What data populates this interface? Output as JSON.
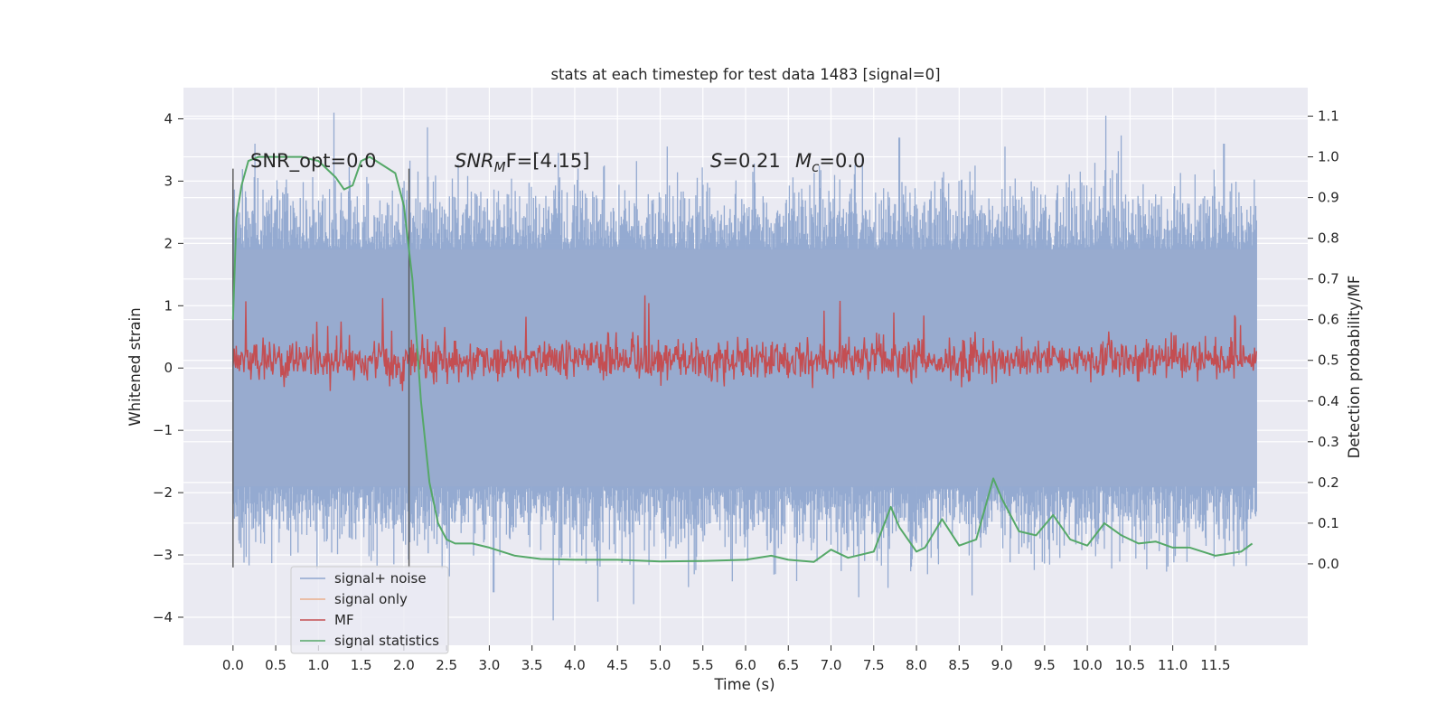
{
  "chart_data": {
    "type": "line",
    "title": "stats at each timestep for test data 1483 [signal=0]",
    "xlabel": "Time (s)",
    "ylabel": "Whitened strain",
    "y2label": "Detection probability/MF",
    "xlim": [
      -0.58,
      12.58
    ],
    "ylim": [
      -4.45,
      4.5
    ],
    "y2lim": [
      -0.2,
      1.17
    ],
    "grid": true,
    "x_ticks": [
      "0.0",
      "0.5",
      "1.0",
      "1.5",
      "2.0",
      "2.5",
      "3.0",
      "3.5",
      "4.0",
      "4.5",
      "5.0",
      "5.5",
      "6.0",
      "6.5",
      "7.0",
      "7.5",
      "8.0",
      "8.5",
      "9.0",
      "9.5",
      "10.0",
      "10.5",
      "11.0",
      "11.5"
    ],
    "y_ticks": [
      -4,
      -3,
      -2,
      -1,
      0,
      1,
      2,
      3,
      4
    ],
    "y2_ticks": [
      "0.0",
      "0.1",
      "0.2",
      "0.3",
      "0.4",
      "0.5",
      "0.6",
      "0.7",
      "0.8",
      "0.9",
      "1.0",
      "1.1"
    ],
    "legend_position": "lower-left",
    "annotations": {
      "snr_opt": "SNR_opt=0.0",
      "snr_mf_main": "SNR",
      "snr_mf_sub": "M",
      "snr_mf_rest": "F=[4.15]",
      "s_var": "S",
      "s_rest": "=0.21",
      "mc_var": "M",
      "mc_sub": "c",
      "mc_rest": "=0.0"
    },
    "vertical_markers": [
      0.0,
      2.06
    ],
    "series": [
      {
        "name": "signal+ noise",
        "color": "#4c72b0",
        "t_start": 0.0,
        "t_end": 11.98,
        "envelope_typical": [
          -1.9,
          1.9
        ],
        "extremes": [
          {
            "x": 0.26,
            "y": 3.6
          },
          {
            "x": 1.18,
            "y": 4.1
          },
          {
            "x": 2.0,
            "y": 3.0
          },
          {
            "x": 3.05,
            "y": -3.6
          },
          {
            "x": 3.75,
            "y": -4.05
          },
          {
            "x": 10.22,
            "y": 4.05
          },
          {
            "x": 8.65,
            "y": -3.65
          },
          {
            "x": 4.27,
            "y": -3.75
          },
          {
            "x": 11.6,
            "y": 3.6
          },
          {
            "x": 7.8,
            "y": 3.7
          },
          {
            "x": 4.35,
            "y": 3.25
          }
        ]
      },
      {
        "name": "signal only",
        "color": "#dd8452",
        "values": []
      },
      {
        "name": "MF",
        "color": "#c44e52",
        "t_start": 0.0,
        "t_end": 11.98,
        "baseline": 0.5,
        "range": [
          0.42,
          0.66
        ]
      },
      {
        "name": "signal statistics",
        "color": "#55a868",
        "x": [
          0.0,
          0.04,
          0.1,
          0.18,
          0.3,
          0.5,
          0.8,
          1.0,
          1.2,
          1.3,
          1.4,
          1.5,
          1.6,
          1.75,
          1.9,
          2.0,
          2.1,
          2.2,
          2.3,
          2.4,
          2.5,
          2.6,
          2.8,
          3.0,
          3.3,
          3.6,
          4.0,
          4.5,
          5.0,
          5.5,
          6.0,
          6.3,
          6.5,
          6.8,
          7.0,
          7.2,
          7.5,
          7.7,
          7.8,
          8.0,
          8.1,
          8.3,
          8.5,
          8.7,
          8.9,
          9.0,
          9.2,
          9.4,
          9.6,
          9.8,
          10.0,
          10.2,
          10.4,
          10.6,
          10.8,
          11.0,
          11.2,
          11.5,
          11.8,
          11.93
        ],
        "y": [
          0.6,
          0.85,
          0.93,
          0.99,
          1.0,
          1.0,
          1.0,
          0.99,
          0.95,
          0.92,
          0.93,
          0.99,
          1.0,
          0.98,
          0.96,
          0.88,
          0.7,
          0.4,
          0.2,
          0.1,
          0.06,
          0.05,
          0.05,
          0.04,
          0.02,
          0.012,
          0.01,
          0.01,
          0.006,
          0.007,
          0.01,
          0.02,
          0.01,
          0.005,
          0.035,
          0.015,
          0.03,
          0.14,
          0.09,
          0.03,
          0.04,
          0.11,
          0.045,
          0.06,
          0.21,
          0.16,
          0.08,
          0.07,
          0.12,
          0.06,
          0.045,
          0.1,
          0.07,
          0.05,
          0.055,
          0.04,
          0.04,
          0.02,
          0.03,
          0.05
        ]
      }
    ]
  }
}
